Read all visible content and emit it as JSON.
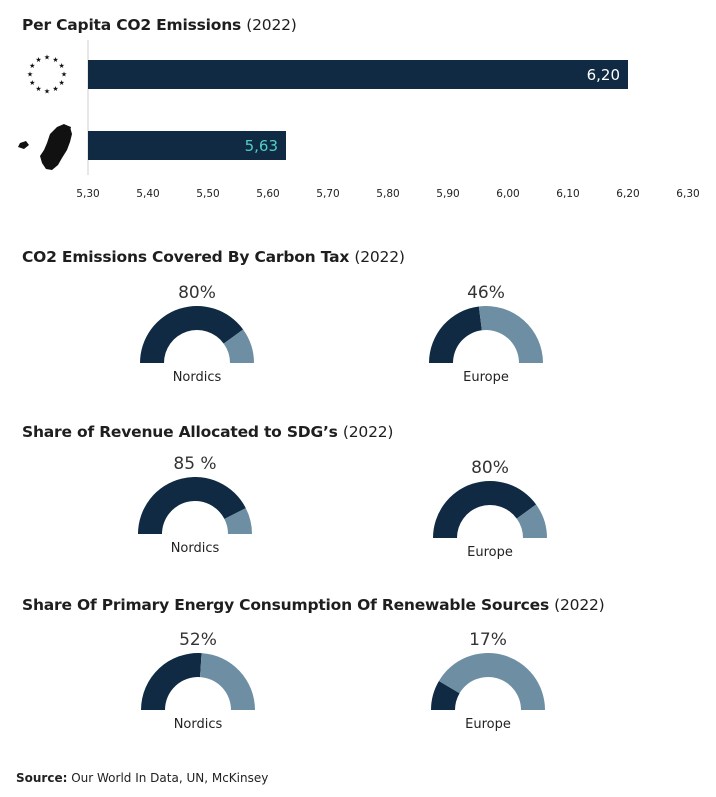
{
  "sections": {
    "emissions": {
      "title": "Per Capita CO2 Emissions",
      "year": "(2022)"
    },
    "carbon_tax": {
      "title": "CO2 Emissions Covered By Carbon Tax",
      "year": "(2022)"
    },
    "revenue": {
      "title": "Share of Revenue Allocated to SDG’s",
      "year": "(2022)"
    },
    "renewables": {
      "title": "Share Of Primary Energy Consumption Of Renewable Sources",
      "year": "(2022)"
    }
  },
  "chart_data": [
    {
      "type": "bar",
      "orientation": "horizontal",
      "title": "Per Capita CO2 Emissions (2022)",
      "categories": [
        "EU",
        "Nordics"
      ],
      "category_icons": [
        "eu-stars-icon",
        "nordic-map-icon"
      ],
      "values": [
        6.2,
        5.63
      ],
      "value_labels": [
        "6,20",
        "5,63"
      ],
      "xlim": [
        5.3,
        6.3
      ],
      "x_ticks": [
        "5,30",
        "5,40",
        "5,50",
        "5,60",
        "5,70",
        "5,80",
        "5,90",
        "6,00",
        "6,10",
        "6,20",
        "6,30"
      ],
      "bar_color": "#102a43",
      "label_colors": [
        "#ffffff",
        "#4fd1c5"
      ]
    },
    {
      "type": "gauge",
      "title": "CO2 Emissions Covered By Carbon Tax (2022)",
      "items": [
        {
          "name": "Nordics",
          "value": 80,
          "label": "80%"
        },
        {
          "name": "Europe",
          "value": 46,
          "label": "46%"
        }
      ]
    },
    {
      "type": "gauge",
      "title": "Share of Revenue Allocated to SDG’s (2022)",
      "items": [
        {
          "name": "Nordics",
          "value": 85,
          "label": "85 %"
        },
        {
          "name": "Europe",
          "value": 80,
          "label": "80%"
        }
      ]
    },
    {
      "type": "gauge",
      "title": "Share Of Primary Energy Consumption Of Renewable Sources (2022)",
      "items": [
        {
          "name": "Nordics",
          "value": 52,
          "label": "52%"
        },
        {
          "name": "Europe",
          "value": 17,
          "label": "17%"
        }
      ]
    }
  ],
  "colors": {
    "filled": "#102a43",
    "remaining": "#6e8fa3",
    "axis": "#cccccc"
  },
  "source": {
    "label": "Source:",
    "text": " Our World In Data, UN, McKinsey"
  }
}
